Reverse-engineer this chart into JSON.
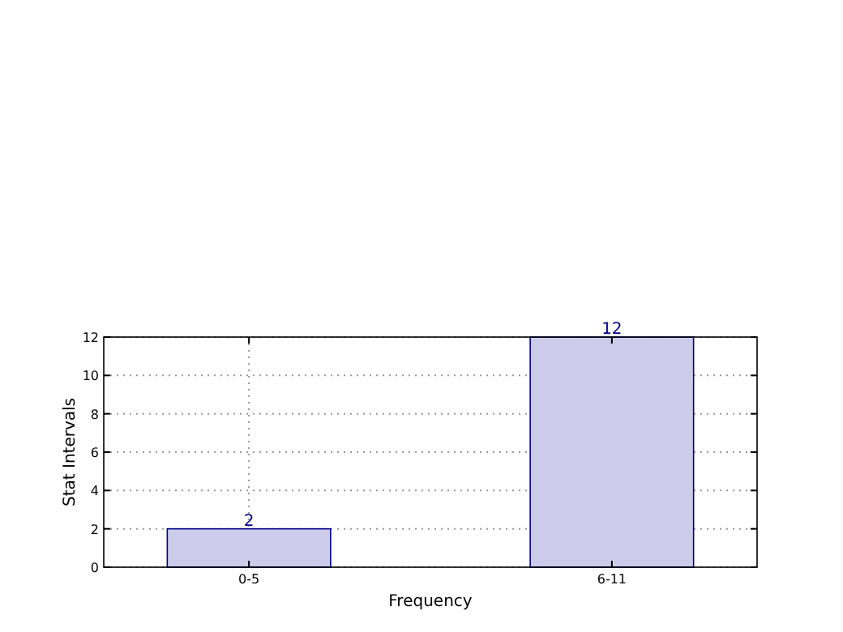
{
  "chart_data": {
    "type": "bar",
    "xlabel": "Frequency",
    "ylabel": "Stat Intervals",
    "categories": [
      "0-5",
      "6-11"
    ],
    "values": [
      2,
      12
    ],
    "color": "#ccccea",
    "ylim": [
      0,
      12
    ],
    "yticks": [
      0,
      2,
      4,
      6,
      8,
      10,
      12
    ],
    "grid": true,
    "data_labels": true
  }
}
